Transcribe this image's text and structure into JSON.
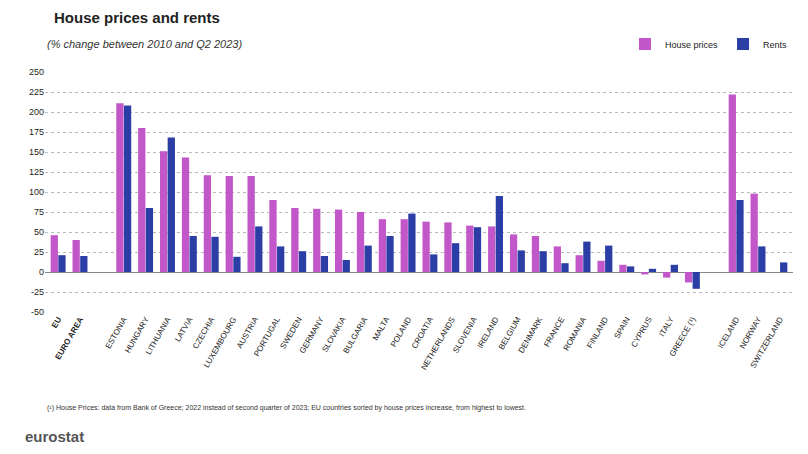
{
  "chart_data": {
    "type": "bar",
    "title": "House prices and rents",
    "subtitle": "(% change between 2010 and Q2 2023)",
    "annotations": [
      "(¹) House Prices: data from Bank of Greece; 2022 instead of second quarter of 2023; EU countries sorted by house prices increase, from highest to lowest.",
      "eurostat"
    ],
    "categories": [
      "EU",
      "EURO AREA",
      null,
      "ESTONIA",
      "HUNGARY",
      "LITHUANIA",
      "LATVIA",
      "CZECHIA",
      "LUXEMBOURG",
      "AUSTRIA",
      "PORTUGAL",
      "SWEDEN",
      "GERMANY",
      "SLOVAKIA",
      "BULGARIA",
      "MALTA",
      "POLAND",
      "CROATIA",
      "NETHERLANDS",
      "SLOVENIA",
      "IRELAND",
      "BELGIUM",
      "DENMARK",
      "FRANCE",
      "ROMANIA",
      "FINLAND",
      "SPAIN",
      "CYPRUS",
      "ITALY",
      "GREECE (¹)",
      null,
      "ICELAND",
      "NORWAY",
      "SWITZERLAND"
    ],
    "series": [
      {
        "name": "House prices",
        "color": "#c157c8",
        "values": [
          46,
          40,
          null,
          211,
          180,
          151,
          143,
          121,
          120,
          120,
          90,
          80,
          79,
          78,
          75,
          66,
          66,
          63,
          62,
          58,
          57,
          47,
          45,
          32,
          21,
          14,
          9,
          -3,
          -7,
          -13,
          null,
          222,
          98,
          null
        ]
      },
      {
        "name": "Rents",
        "color": "#2b3ea5",
        "values": [
          21,
          20,
          null,
          208,
          80,
          168,
          45,
          44,
          19,
          57,
          32,
          26,
          20,
          15,
          33,
          45,
          73,
          22,
          36,
          56,
          95,
          27,
          26,
          11,
          38,
          33,
          7,
          4,
          9,
          -21,
          null,
          90,
          32,
          12
        ]
      }
    ],
    "ylim": [
      -50,
      250
    ],
    "yticks": [
      -50,
      -25,
      0,
      25,
      50,
      75,
      100,
      125,
      150,
      175,
      200,
      225,
      250
    ],
    "grid": true,
    "legend": "top-right",
    "data_labels": false
  }
}
